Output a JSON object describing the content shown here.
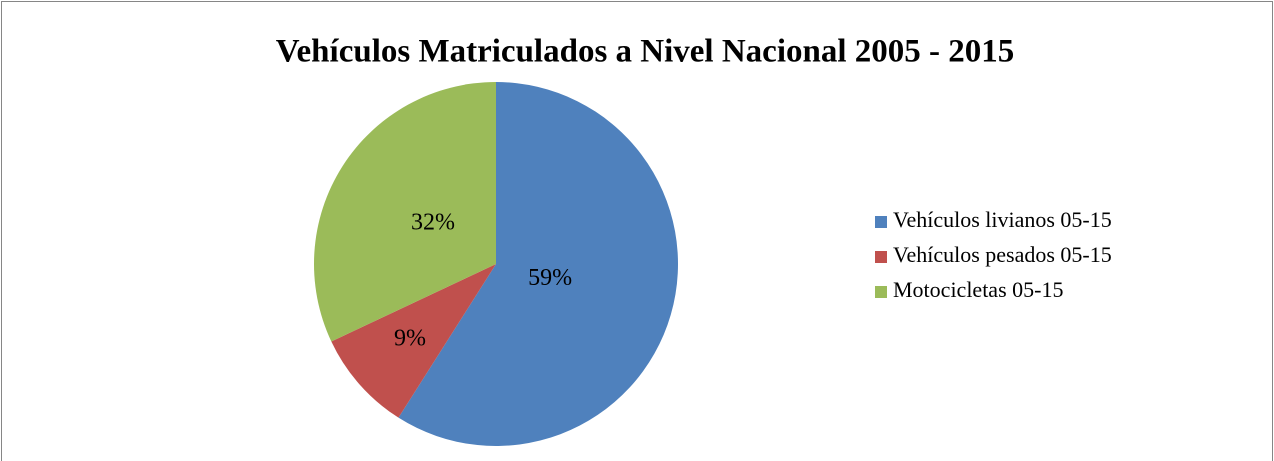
{
  "chart_data": {
    "type": "pie",
    "title": "Vehículos Matriculados a Nivel Nacional 2005 - 2015",
    "categories": [
      "Vehículos livianos 05-15",
      "Vehículos pesados 05-15",
      "Motocicletas 05-15"
    ],
    "values": [
      59,
      9,
      32
    ],
    "value_labels": [
      "59%",
      "9%",
      "32%"
    ],
    "colors": [
      "#4f81bd",
      "#c0504d",
      "#9bbb59"
    ],
    "legend": "right"
  }
}
